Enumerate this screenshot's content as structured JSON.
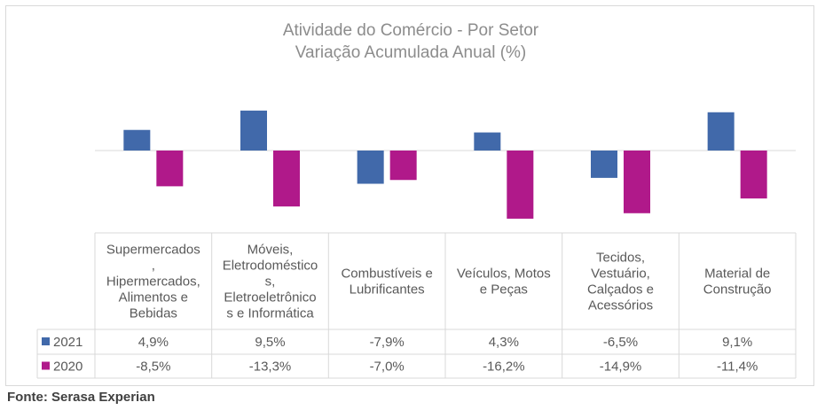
{
  "chart_data": {
    "type": "bar",
    "title": [
      "Atividade do Comércio - Por Setor",
      "Variação Acumulada Anual (%)"
    ],
    "categories": [
      [
        "Supermercados",
        ",",
        "Hipermercados,",
        "Alimentos e",
        "Bebidas"
      ],
      [
        "Móveis,",
        "Eletrodoméstico",
        "s,",
        "Eletroeletrônico",
        "s e Informática"
      ],
      [
        "Combustíveis e",
        "Lubrificantes"
      ],
      [
        "Veículos, Motos",
        "e Peças"
      ],
      [
        "Tecidos,",
        "Vestuário,",
        "Calçados e",
        "Acessórios"
      ],
      [
        "Material de",
        "Construção"
      ]
    ],
    "series": [
      {
        "name": "2021",
        "color": "#4169aa",
        "values": [
          4.9,
          9.5,
          -7.9,
          4.3,
          -6.5,
          9.1
        ],
        "labels": [
          "4,9%",
          "9,5%",
          "-7,9%",
          "4,3%",
          "-6,5%",
          "9,1%"
        ]
      },
      {
        "name": "2020",
        "color": "#b0198a",
        "values": [
          -8.5,
          -13.3,
          -7.0,
          -16.2,
          -14.9,
          -11.4
        ],
        "labels": [
          "-8,5%",
          "-13,3%",
          "-7,0%",
          "-16,2%",
          "-14,9%",
          "-11,4%"
        ]
      }
    ],
    "ylim": [
      -17,
      12
    ],
    "grid": false,
    "legend": "data-table"
  },
  "source": "Fonte: Serasa Experian"
}
